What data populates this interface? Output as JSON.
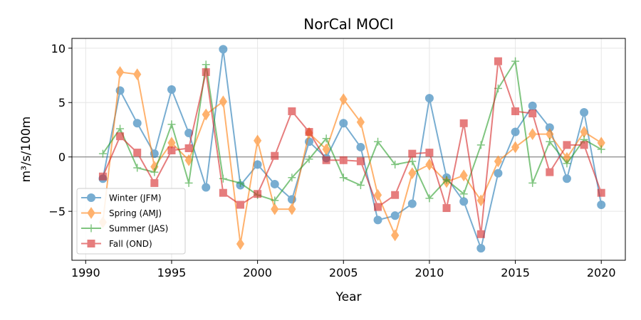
{
  "chart_data": {
    "type": "line",
    "title": "NorCal MOCI",
    "xlabel": "Year",
    "ylabel": "m³/s/100m",
    "xlim": [
      1989.2,
      2021.4
    ],
    "ylim": [
      -9.5,
      10.9
    ],
    "x_ticks": [
      1990,
      1995,
      2000,
      2005,
      2010,
      2015,
      2020
    ],
    "y_ticks": [
      -5,
      0,
      5,
      10
    ],
    "y_tick_labels": [
      "−5",
      "0",
      "5",
      "10"
    ],
    "grid": true,
    "zero_line": true,
    "legend_position": "lower-left",
    "x": [
      1991,
      1992,
      1993,
      1994,
      1995,
      1996,
      1997,
      1998,
      1999,
      2000,
      2001,
      2002,
      2003,
      2004,
      2005,
      2006,
      2007,
      2008,
      2009,
      2010,
      2011,
      2012,
      2013,
      2014,
      2015,
      2016,
      2017,
      2018,
      2019,
      2020
    ],
    "series": [
      {
        "name": "Winter (JFM)",
        "color": "#1f77b4",
        "marker": "circle",
        "values": [
          -2.0,
          6.1,
          3.1,
          0.3,
          6.2,
          2.2,
          -2.8,
          9.9,
          -2.6,
          -0.7,
          -2.5,
          -3.9,
          1.4,
          -0.1,
          3.1,
          0.9,
          -5.8,
          -5.4,
          -4.3,
          5.4,
          -1.9,
          -4.1,
          -8.4,
          -1.5,
          2.3,
          4.7,
          2.7,
          -2.0,
          4.1,
          -4.4
        ]
      },
      {
        "name": "Spring (AMJ)",
        "color": "#ff7f0e",
        "marker": "diamond",
        "values": [
          -6.0,
          7.8,
          7.6,
          -0.9,
          1.3,
          -0.3,
          3.9,
          5.1,
          -8.0,
          1.5,
          -4.8,
          -4.8,
          2.2,
          0.7,
          5.3,
          3.2,
          -3.5,
          -7.2,
          -1.5,
          -0.7,
          -2.3,
          -1.7,
          -4.0,
          -0.4,
          0.9,
          2.1,
          2.1,
          -0.1,
          2.3,
          1.3
        ]
      },
      {
        "name": "Summer (JAS)",
        "color": "#2ca02c",
        "marker": "plus",
        "values": [
          0.3,
          2.6,
          -1.0,
          -1.4,
          3.0,
          -2.4,
          8.5,
          -2.0,
          -2.4,
          -3.5,
          -4.0,
          -1.9,
          -0.2,
          1.7,
          -1.9,
          -2.6,
          1.4,
          -0.7,
          -0.4,
          -3.8,
          -2.1,
          -3.4,
          1.1,
          6.3,
          8.8,
          -2.4,
          1.4,
          -0.6,
          1.6,
          0.7
        ]
      },
      {
        "name": "Fall (OND)",
        "color": "#d62728",
        "marker": "square",
        "values": [
          -1.8,
          1.9,
          0.4,
          -2.4,
          0.6,
          0.8,
          7.8,
          -3.3,
          -4.4,
          -3.4,
          0.1,
          4.2,
          2.3,
          -0.3,
          -0.3,
          -0.4,
          -4.6,
          -3.5,
          0.3,
          0.4,
          -4.7,
          3.1,
          -7.1,
          8.8,
          4.2,
          4.0,
          -1.4,
          1.1,
          1.1,
          -3.3
        ]
      }
    ]
  }
}
